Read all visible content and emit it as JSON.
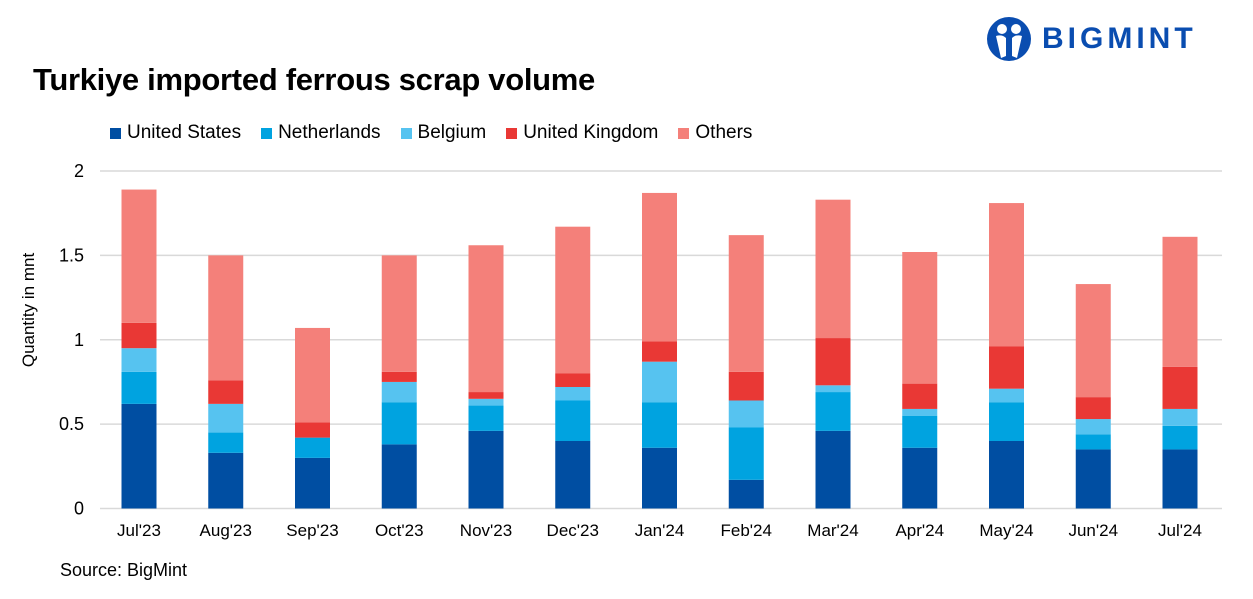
{
  "logo": {
    "text": "BIGMINT",
    "color": "#0a4db0"
  },
  "chart_data": {
    "type": "bar",
    "stacked": true,
    "title": "Turkiye imported ferrous scrap volume",
    "xlabel": "",
    "ylabel": "Quantity in mnt",
    "ylim": [
      0,
      2
    ],
    "yticks": [
      "0",
      "0.5",
      "1",
      "1.5",
      "2"
    ],
    "grid": true,
    "legend_position": "top",
    "source": "Source: BigMint",
    "categories": [
      "Jul'23",
      "Aug'23",
      "Sep'23",
      "Oct'23",
      "Nov'23",
      "Dec'23",
      "Jan'24",
      "Feb'24",
      "Mar'24",
      "Apr'24",
      "May'24",
      "Jun'24",
      "Jul'24"
    ],
    "series": [
      {
        "name": "United States",
        "color": "#004ea2",
        "values": [
          0.62,
          0.33,
          0.3,
          0.38,
          0.46,
          0.4,
          0.36,
          0.17,
          0.46,
          0.36,
          0.4,
          0.35,
          0.35
        ]
      },
      {
        "name": "Netherlands",
        "color": "#00a3e0",
        "values": [
          0.19,
          0.12,
          0.12,
          0.25,
          0.15,
          0.24,
          0.27,
          0.31,
          0.23,
          0.19,
          0.23,
          0.09,
          0.14
        ]
      },
      {
        "name": "Belgium",
        "color": "#56c3f0",
        "values": [
          0.14,
          0.17,
          0.0,
          0.12,
          0.04,
          0.08,
          0.24,
          0.16,
          0.04,
          0.04,
          0.08,
          0.09,
          0.1
        ]
      },
      {
        "name": "United Kingdom",
        "color": "#e93835",
        "values": [
          0.15,
          0.14,
          0.09,
          0.06,
          0.04,
          0.08,
          0.12,
          0.17,
          0.28,
          0.15,
          0.25,
          0.13,
          0.25
        ]
      },
      {
        "name": "Others",
        "color": "#f4807a",
        "values": [
          0.79,
          0.74,
          0.56,
          0.69,
          0.87,
          0.87,
          0.88,
          0.81,
          0.82,
          0.78,
          0.85,
          0.67,
          0.77
        ]
      }
    ]
  }
}
